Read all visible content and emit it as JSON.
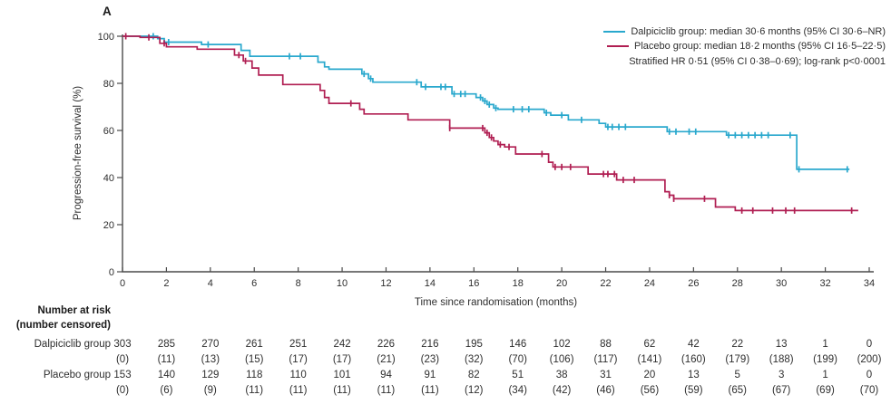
{
  "panel_label": "A",
  "colors": {
    "dalpiciclib": "#29a8cd",
    "placebo": "#b01e52",
    "axis": "#4a4a4a",
    "text": "#2e2e2e"
  },
  "legend": {
    "items": [
      {
        "name": "Dalpiciclib group",
        "label": "Dalpiciclib group: median 30·6 months (95% CI 30·6–NR)",
        "color": "#29a8cd"
      },
      {
        "name": "Placebo group",
        "label": "Placebo group: median 18·2 months (95% CI 16·5–22·5)",
        "color": "#b01e52"
      }
    ],
    "note": "Stratified HR 0·51 (95% CI 0·38–0·69); log-rank p<0·0001"
  },
  "chart_data": {
    "type": "line",
    "subtype": "kaplan-meier-step",
    "title": "",
    "xlabel": "Time since randomisation (months)",
    "ylabel": "Progression-free survival (%)",
    "xlim": [
      0,
      34
    ],
    "ylim": [
      0,
      100
    ],
    "xticks": [
      0,
      2,
      4,
      6,
      8,
      10,
      12,
      14,
      16,
      18,
      20,
      22,
      24,
      26,
      28,
      30,
      32,
      34
    ],
    "yticks": [
      0,
      20,
      40,
      60,
      80,
      100
    ],
    "grid": false,
    "legend_position": "top-right",
    "series": [
      {
        "name": "Dalpiciclib group",
        "color": "#29a8cd",
        "median_months": "30·6",
        "ci_95": "30·6–NR",
        "end_month": 33.1,
        "steps": [
          [
            0,
            100
          ],
          [
            1.6,
            99
          ],
          [
            1.9,
            97.5
          ],
          [
            3.6,
            96.5
          ],
          [
            5.4,
            94
          ],
          [
            5.8,
            91.5
          ],
          [
            8.9,
            89
          ],
          [
            9.2,
            87
          ],
          [
            9.4,
            86
          ],
          [
            10.9,
            84
          ],
          [
            11.2,
            82
          ],
          [
            11.4,
            80.5
          ],
          [
            13.6,
            78.5
          ],
          [
            15.0,
            75.5
          ],
          [
            16.1,
            74
          ],
          [
            16.4,
            72.5
          ],
          [
            16.6,
            71
          ],
          [
            16.9,
            69.5
          ],
          [
            17.1,
            69
          ],
          [
            19.2,
            67.5
          ],
          [
            19.5,
            66.5
          ],
          [
            20.3,
            64.5
          ],
          [
            21.7,
            63
          ],
          [
            22.0,
            61.5
          ],
          [
            24.8,
            59.5
          ],
          [
            27.5,
            58
          ],
          [
            30.7,
            43.5
          ]
        ],
        "censor_ticks": [
          1.4,
          2.1,
          3.9,
          7.6,
          8.1,
          11.0,
          11.3,
          13.4,
          13.8,
          14.5,
          14.7,
          15.1,
          15.4,
          15.6,
          16.3,
          16.5,
          16.7,
          17.0,
          17.8,
          18.2,
          18.5,
          19.3,
          20.0,
          20.9,
          22.1,
          22.3,
          22.6,
          22.9,
          24.9,
          25.2,
          25.8,
          26.1,
          27.6,
          27.9,
          28.2,
          28.5,
          28.8,
          29.1,
          29.4,
          30.4,
          30.8,
          33.0
        ]
      },
      {
        "name": "Placebo group",
        "color": "#b01e52",
        "median_months": "18·2",
        "ci_95": "16·5–22·5",
        "end_month": 33.5,
        "steps": [
          [
            0,
            100
          ],
          [
            0.8,
            99.5
          ],
          [
            1.7,
            97
          ],
          [
            2.0,
            95.5
          ],
          [
            3.4,
            94.5
          ],
          [
            5.1,
            92
          ],
          [
            5.5,
            89.5
          ],
          [
            5.9,
            86.5
          ],
          [
            6.2,
            83.5
          ],
          [
            7.3,
            79.5
          ],
          [
            9.0,
            77
          ],
          [
            9.2,
            74
          ],
          [
            9.4,
            71.5
          ],
          [
            10.8,
            69
          ],
          [
            11.0,
            67
          ],
          [
            13.0,
            64.5
          ],
          [
            14.9,
            61
          ],
          [
            16.5,
            59
          ],
          [
            16.7,
            57
          ],
          [
            16.9,
            55.5
          ],
          [
            17.1,
            54
          ],
          [
            17.4,
            53
          ],
          [
            17.9,
            50
          ],
          [
            19.4,
            46.5
          ],
          [
            19.6,
            44.5
          ],
          [
            21.2,
            41.5
          ],
          [
            22.5,
            39
          ],
          [
            24.7,
            34
          ],
          [
            24.9,
            32.5
          ],
          [
            25.1,
            31
          ],
          [
            27.0,
            27.5
          ],
          [
            27.9,
            26
          ]
        ],
        "censor_ticks": [
          0.15,
          1.2,
          1.9,
          5.3,
          5.6,
          10.4,
          14.9,
          16.4,
          16.6,
          16.8,
          17.2,
          17.6,
          19.1,
          19.7,
          20.0,
          20.4,
          21.9,
          22.1,
          22.4,
          22.8,
          23.3,
          24.9,
          25.1,
          26.5,
          28.2,
          28.7,
          29.6,
          30.2,
          30.6,
          33.2
        ]
      }
    ]
  },
  "risk_table": {
    "header_line1": "Number at risk",
    "header_line2": "(number censored)",
    "timepoints": [
      0,
      2,
      4,
      6,
      8,
      10,
      12,
      14,
      16,
      18,
      20,
      22,
      24,
      26,
      28,
      30,
      32,
      34
    ],
    "rows": [
      {
        "label": "Dalpiciclib group",
        "at_risk": [
          303,
          285,
          270,
          261,
          251,
          242,
          226,
          216,
          195,
          146,
          102,
          88,
          62,
          42,
          22,
          13,
          1,
          0
        ],
        "censored": [
          "(0)",
          "(11)",
          "(13)",
          "(15)",
          "(17)",
          "(17)",
          "(21)",
          "(23)",
          "(32)",
          "(70)",
          "(106)",
          "(117)",
          "(141)",
          "(160)",
          "(179)",
          "(188)",
          "(199)",
          "(200)"
        ]
      },
      {
        "label": "Placebo group",
        "at_risk": [
          153,
          140,
          129,
          118,
          110,
          101,
          94,
          91,
          82,
          51,
          38,
          31,
          20,
          13,
          5,
          3,
          1,
          0
        ],
        "censored": [
          "(0)",
          "(6)",
          "(9)",
          "(11)",
          "(11)",
          "(11)",
          "(11)",
          "(11)",
          "(12)",
          "(34)",
          "(42)",
          "(46)",
          "(56)",
          "(59)",
          "(65)",
          "(67)",
          "(69)",
          "(70)"
        ]
      }
    ]
  }
}
